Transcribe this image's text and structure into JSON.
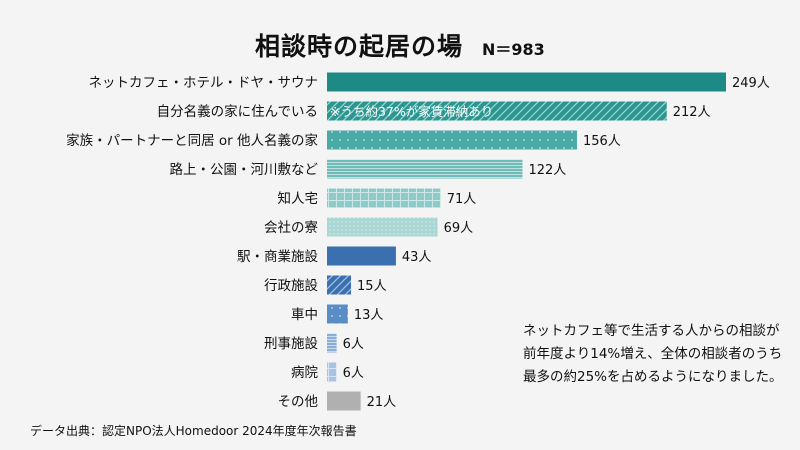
{
  "chart_data": {
    "type": "bar",
    "orientation": "horizontal",
    "title": "相談時の起居の場",
    "subtitle": "N＝983",
    "unit": "人",
    "categories": [
      "ネットカフェ・ホテル・ドヤ・サウナ",
      "自分名義の家に住んでいる",
      "家族・パートナーと同居 or 他人名義の家",
      "路上・公園・河川敷など",
      "知人宅",
      "会社の寮",
      "駅・商業施設",
      "行政施設",
      "車中",
      "刑事施設",
      "病院",
      "その他"
    ],
    "values": [
      249,
      212,
      156,
      122,
      71,
      69,
      43,
      15,
      13,
      6,
      6,
      21
    ],
    "data_labels": [
      "249人",
      "212人",
      "156人",
      "122人",
      "71人",
      "69人",
      "43人",
      "15人",
      "13人",
      "6人",
      "6人",
      "21人"
    ],
    "bar_colors": [
      "#1e8a85",
      "#2a9690",
      "#4aaaa6",
      "#6fbcb8",
      "#8ecbc8",
      "#a8d7d4",
      "#3a70b0",
      "#3a70b0",
      "#5a8cc6",
      "#8aaed8",
      "#a8c4e4",
      "#b0b0b0"
    ],
    "bar_patterns": [
      "solid",
      "diagonal",
      "dots",
      "hlines",
      "grid",
      "dots-fine",
      "solid",
      "diagonal",
      "dots",
      "hlines",
      "grid",
      "solid"
    ],
    "bar_annotation": "※うち約37%が家賃滞納あり",
    "annotated_index": 1,
    "grid": false
  },
  "note": "ネットカフェ等で生活する人からの相談が前年度より14%増え、全体の相談者のうち最多の約25%を占めるようになりました。",
  "source": "データ出典：認定NPO法人Homedoor 2024年度年次報告書"
}
